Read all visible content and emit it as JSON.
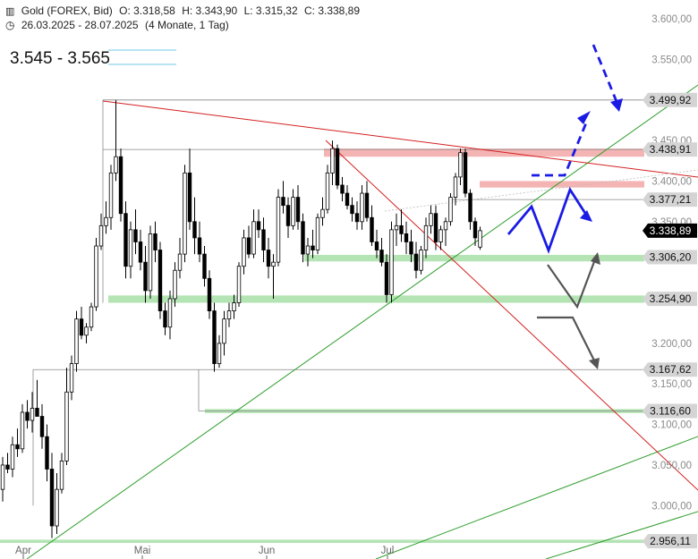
{
  "header": {
    "symbol": "Gold (FOREX, Bid)",
    "open": "O: 3.318,58",
    "high": "H: 3.343,90",
    "low": "L: 3.315,32",
    "close": "C: 3.338,89",
    "period": "26.03.2025 - 28.07.2025",
    "timeframe": "(4 Monate, 1 Tag)"
  },
  "target_zone": "3.545 - 3.565",
  "colors": {
    "candle_up": "#ffffff",
    "candle_down": "#000000",
    "red_trend": "#d42020",
    "green_trend": "#2e9e2e",
    "support_zone": "#b4e4b4",
    "resistance_zone": "#f4b4b4",
    "scenario_blue": "#1a1ae6",
    "scenario_gray": "#555555",
    "label_bg": "#d4d4d4",
    "current_label_bg": "#000000",
    "target_marker": "#b8e4f4"
  },
  "chart_data": {
    "type": "candlestick",
    "y_axis_ticks": [
      "3.600,00",
      "3.550,00",
      "3.450,00",
      "3.400,00",
      "3.350,00",
      "3.200,00",
      "3.150,00",
      "3.100,00",
      "3.050,00",
      "3.000,00"
    ],
    "x_axis_ticks": [
      "Apr",
      "Mai",
      "Jun",
      "Jul"
    ],
    "ylim": [
      2950,
      3620
    ],
    "price_labels": [
      {
        "value": 3499.92,
        "text": "3.499,92"
      },
      {
        "value": 3438.91,
        "text": "3.438,91"
      },
      {
        "value": 3377.21,
        "text": "3.377,21"
      },
      {
        "value": 3306.2,
        "text": "3.306,20"
      },
      {
        "value": 3254.9,
        "text": "3.254,90"
      },
      {
        "value": 3167.62,
        "text": "3.167,62"
      },
      {
        "value": 3116.6,
        "text": "3.116,60"
      },
      {
        "value": 2956.11,
        "text": "2.956,11"
      }
    ],
    "current_price": {
      "value": 3338.89,
      "text": "3.338,89"
    },
    "candles": [
      [
        3020,
        3060,
        3005,
        3050
      ],
      [
        3050,
        3065,
        3040,
        3045
      ],
      [
        3045,
        3085,
        3035,
        3075
      ],
      [
        3075,
        3095,
        3060,
        3070
      ],
      [
        3070,
        3125,
        3065,
        3115
      ],
      [
        3115,
        3130,
        3095,
        3105
      ],
      [
        3105,
        3140,
        3090,
        3120
      ],
      [
        3120,
        3155,
        3110,
        3110
      ],
      [
        3110,
        3125,
        3070,
        3085
      ],
      [
        3085,
        3100,
        3030,
        3045
      ],
      [
        3045,
        3065,
        2960,
        2975
      ],
      [
        2975,
        3040,
        2965,
        3020
      ],
      [
        3020,
        3065,
        3015,
        3055
      ],
      [
        3055,
        3170,
        3050,
        3140
      ],
      [
        3140,
        3185,
        3130,
        3175
      ],
      [
        3175,
        3240,
        3165,
        3230
      ],
      [
        3230,
        3245,
        3205,
        3210
      ],
      [
        3210,
        3225,
        3200,
        3220
      ],
      [
        3220,
        3250,
        3215,
        3245
      ],
      [
        3245,
        3330,
        3240,
        3320
      ],
      [
        3320,
        3360,
        3315,
        3345
      ],
      [
        3345,
        3375,
        3335,
        3355
      ],
      [
        3355,
        3420,
        3340,
        3410
      ],
      [
        3410,
        3500,
        3400,
        3430
      ],
      [
        3430,
        3440,
        3350,
        3360
      ],
      [
        3360,
        3375,
        3280,
        3295
      ],
      [
        3295,
        3350,
        3280,
        3340
      ],
      [
        3340,
        3365,
        3310,
        3325
      ],
      [
        3325,
        3340,
        3290,
        3300
      ],
      [
        3300,
        3320,
        3250,
        3265
      ],
      [
        3265,
        3345,
        3255,
        3335
      ],
      [
        3335,
        3350,
        3300,
        3315
      ],
      [
        3315,
        3325,
        3230,
        3240
      ],
      [
        3240,
        3250,
        3210,
        3220
      ],
      [
        3220,
        3265,
        3205,
        3255
      ],
      [
        3255,
        3300,
        3245,
        3290
      ],
      [
        3290,
        3330,
        3280,
        3310
      ],
      [
        3310,
        3420,
        3300,
        3410
      ],
      [
        3410,
        3440,
        3340,
        3350
      ],
      [
        3350,
        3380,
        3310,
        3330
      ],
      [
        3330,
        3350,
        3300,
        3310
      ],
      [
        3310,
        3320,
        3270,
        3280
      ],
      [
        3280,
        3290,
        3230,
        3240
      ],
      [
        3240,
        3250,
        3165,
        3175
      ],
      [
        3175,
        3210,
        3170,
        3200
      ],
      [
        3200,
        3240,
        3185,
        3230
      ],
      [
        3230,
        3250,
        3220,
        3240
      ],
      [
        3240,
        3260,
        3230,
        3250
      ],
      [
        3250,
        3300,
        3245,
        3295
      ],
      [
        3295,
        3340,
        3285,
        3330
      ],
      [
        3330,
        3345,
        3305,
        3310
      ],
      [
        3310,
        3365,
        3305,
        3350
      ],
      [
        3350,
        3365,
        3330,
        3340
      ],
      [
        3340,
        3355,
        3300,
        3315
      ],
      [
        3315,
        3330,
        3280,
        3295
      ],
      [
        3295,
        3310,
        3255,
        3300
      ],
      [
        3300,
        3390,
        3295,
        3380
      ],
      [
        3380,
        3400,
        3360,
        3370
      ],
      [
        3370,
        3380,
        3330,
        3345
      ],
      [
        3345,
        3390,
        3340,
        3380
      ],
      [
        3380,
        3395,
        3340,
        3350
      ],
      [
        3350,
        3360,
        3300,
        3310
      ],
      [
        3310,
        3330,
        3295,
        3320
      ],
      [
        3320,
        3340,
        3305,
        3315
      ],
      [
        3315,
        3360,
        3310,
        3355
      ],
      [
        3355,
        3380,
        3345,
        3365
      ],
      [
        3365,
        3420,
        3360,
        3410
      ],
      [
        3410,
        3450,
        3395,
        3440
      ],
      [
        3440,
        3445,
        3390,
        3395
      ],
      [
        3395,
        3405,
        3375,
        3385
      ],
      [
        3385,
        3395,
        3365,
        3370
      ],
      [
        3370,
        3380,
        3350,
        3360
      ],
      [
        3360,
        3375,
        3340,
        3350
      ],
      [
        3350,
        3395,
        3340,
        3385
      ],
      [
        3385,
        3400,
        3350,
        3355
      ],
      [
        3355,
        3370,
        3320,
        3325
      ],
      [
        3325,
        3340,
        3305,
        3315
      ],
      [
        3315,
        3330,
        3295,
        3300
      ],
      [
        3300,
        3310,
        3250,
        3260
      ],
      [
        3260,
        3350,
        3250,
        3340
      ],
      [
        3340,
        3360,
        3320,
        3345
      ],
      [
        3345,
        3365,
        3325,
        3335
      ],
      [
        3335,
        3350,
        3310,
        3325
      ],
      [
        3325,
        3340,
        3300,
        3310
      ],
      [
        3310,
        3325,
        3280,
        3290
      ],
      [
        3290,
        3320,
        3285,
        3315
      ],
      [
        3315,
        3355,
        3305,
        3345
      ],
      [
        3345,
        3370,
        3335,
        3360
      ],
      [
        3360,
        3370,
        3315,
        3325
      ],
      [
        3325,
        3345,
        3315,
        3340
      ],
      [
        3340,
        3355,
        3320,
        3350
      ],
      [
        3350,
        3385,
        3345,
        3380
      ],
      [
        3380,
        3410,
        3370,
        3405
      ],
      [
        3405,
        3440,
        3395,
        3435
      ],
      [
        3435,
        3440,
        3380,
        3385
      ],
      [
        3385,
        3390,
        3340,
        3350
      ],
      [
        3350,
        3355,
        3320,
        3330
      ],
      [
        3318.58,
        3343.9,
        3315.32,
        3338.89
      ]
    ]
  }
}
